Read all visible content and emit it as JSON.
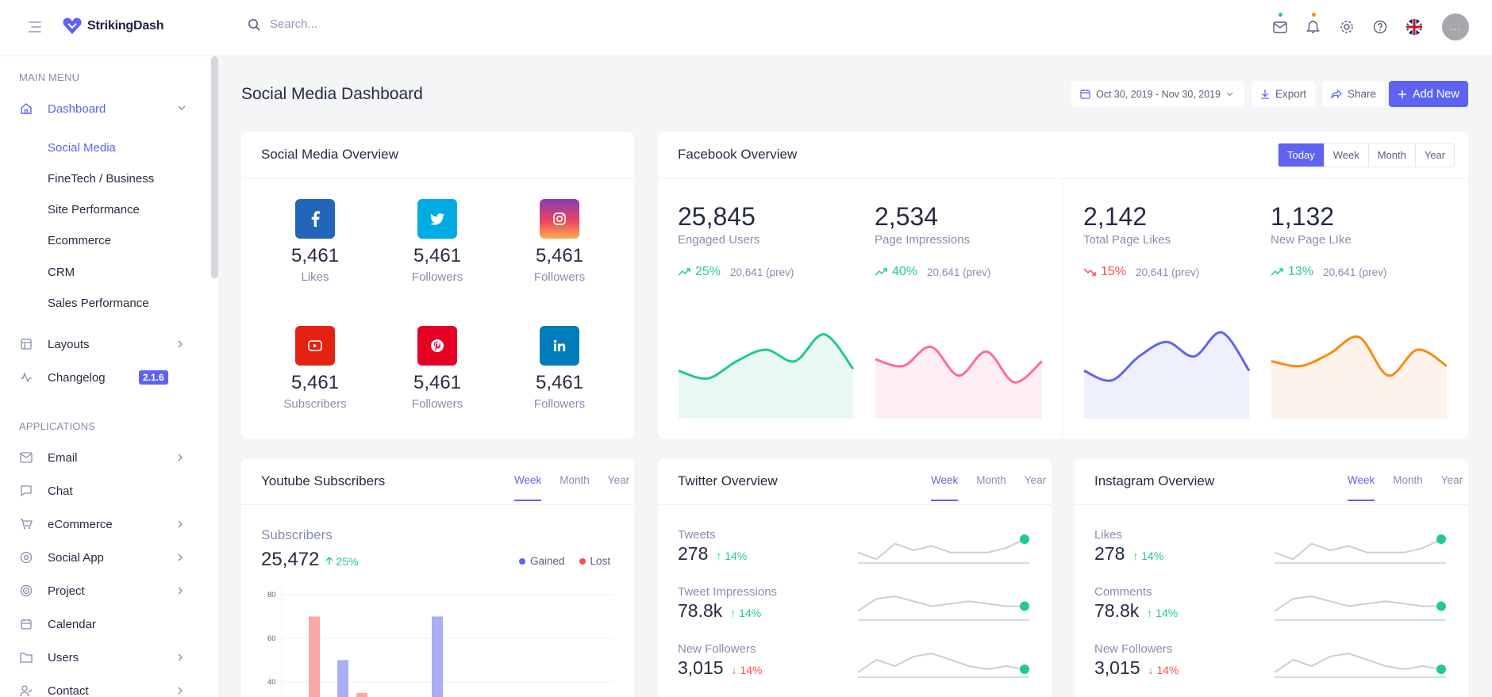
{
  "app": {
    "brand": "StrikingDash",
    "search_placeholder": "Search...",
    "avatar_label": "..."
  },
  "sidebar": {
    "main_menu_label": "MAIN MENU",
    "applications_label": "APPLICATIONS",
    "dashboard": "Dashboard",
    "dashboard_items": [
      "Social Media",
      "FineTech / Business",
      "Site Performance",
      "Ecommerce",
      "CRM",
      "Sales Performance"
    ],
    "layouts": "Layouts",
    "changelog": "Changelog",
    "changelog_badge": "2.1.6",
    "apps": [
      "Email",
      "Chat",
      "eCommerce",
      "Social App",
      "Project",
      "Calendar",
      "Users",
      "Contact"
    ]
  },
  "header": {
    "title": "Social Media Dashboard",
    "date_range": "Oct 30, 2019 - Nov 30, 2019",
    "export": "Export",
    "share": "Share",
    "add_new": "Add New"
  },
  "social_overview": {
    "title": "Social Media Overview",
    "items": [
      {
        "network": "facebook",
        "value": "5,461",
        "label": "Likes",
        "color": "#2366b8"
      },
      {
        "network": "twitter",
        "value": "5,461",
        "label": "Followers",
        "color": "#00abe4"
      },
      {
        "network": "instagram",
        "value": "5,461",
        "label": "Followers",
        "color": "#c13584"
      },
      {
        "network": "youtube",
        "value": "5,461",
        "label": "Subscribers",
        "color": "#e32212"
      },
      {
        "network": "pinterest",
        "value": "5,461",
        "label": "Followers",
        "color": "#e60023"
      },
      {
        "network": "linkedin",
        "value": "5,461",
        "label": "Followers",
        "color": "#007cbc"
      }
    ]
  },
  "facebook": {
    "title": "Facebook Overview",
    "tabs": [
      "Today",
      "Week",
      "Month",
      "Year"
    ],
    "active_tab": "Today",
    "stats": [
      {
        "value": "25,845",
        "label": "Engaged Users",
        "change": "25%",
        "prev": "20,641 (prev)",
        "trend": "up",
        "color": "#20c997",
        "fill": "#e9f8f3",
        "series": [
          40,
          32,
          50,
          62,
          50,
          78,
          42
        ]
      },
      {
        "value": "2,534",
        "label": "Page Impressions",
        "change": "40%",
        "prev": "20,641 (prev)",
        "trend": "up",
        "color": "#ff69a5",
        "fill": "#fdeef4",
        "series": [
          52,
          45,
          65,
          35,
          60,
          28,
          50
        ]
      },
      {
        "value": "2,142",
        "label": "Total Page Likes",
        "change": "15%",
        "prev": "20,641 (prev)",
        "trend": "down",
        "color": "#5f63f2",
        "fill": "#eef1fb",
        "series": [
          40,
          30,
          55,
          70,
          55,
          80,
          40
        ]
      },
      {
        "value": "1,132",
        "label": "New Page LIke",
        "change": "13%",
        "prev": "20,641 (prev)",
        "trend": "up",
        "color": "#fa8b0c",
        "fill": "#fdf3ea",
        "series": [
          50,
          45,
          58,
          75,
          35,
          62,
          45
        ]
      }
    ]
  },
  "youtube": {
    "title": "Youtube Subscribers",
    "tabs": [
      "Week",
      "Month",
      "Year"
    ],
    "subscribers_label": "Subscribers",
    "subscribers_value": "25,472",
    "subscribers_change": "25%",
    "legend_gained": "Gained",
    "legend_lost": "Lost"
  },
  "chart_data": {
    "type": "bar",
    "yticks": [
      "80",
      "60",
      "40"
    ],
    "ylim": [
      0,
      80
    ],
    "series": [
      {
        "name": "Gained",
        "color": "#a9aef5",
        "values": [
          50,
          70
        ]
      },
      {
        "name": "Lost",
        "color": "#f9a7a8",
        "values": [
          70,
          35
        ]
      }
    ]
  },
  "twitter": {
    "title": "Twitter Overview",
    "tabs": [
      "Week",
      "Month",
      "Year"
    ],
    "rows": [
      {
        "label": "Tweets",
        "value": "278",
        "change": "14%",
        "trend": "up",
        "series": [
          4,
          1,
          8,
          5,
          7,
          4,
          4,
          4,
          6,
          10
        ]
      },
      {
        "label": "Tweet Impressions",
        "value": "78.8k",
        "change": "14%",
        "trend": "up",
        "series": [
          3,
          8,
          9,
          7,
          5,
          6,
          7,
          6,
          5,
          5
        ]
      },
      {
        "label": "New Followers",
        "value": "3,015",
        "change": "14%",
        "trend": "down",
        "series": [
          1,
          5,
          3,
          6,
          7,
          5,
          3,
          2,
          3,
          2
        ]
      }
    ]
  },
  "instagram": {
    "title": "Instagram Overview",
    "tabs": [
      "Week",
      "Month",
      "Year"
    ],
    "rows": [
      {
        "label": "Likes",
        "value": "278",
        "change": "14%",
        "trend": "up",
        "series": [
          4,
          1,
          8,
          5,
          7,
          4,
          4,
          4,
          6,
          10
        ]
      },
      {
        "label": "Comments",
        "value": "78.8k",
        "change": "14%",
        "trend": "up",
        "series": [
          3,
          8,
          9,
          7,
          5,
          6,
          7,
          6,
          5,
          5
        ]
      },
      {
        "label": "New Followers",
        "value": "3,015",
        "change": "14%",
        "trend": "down",
        "series": [
          1,
          5,
          3,
          6,
          7,
          5,
          3,
          2,
          3,
          2
        ]
      }
    ]
  }
}
